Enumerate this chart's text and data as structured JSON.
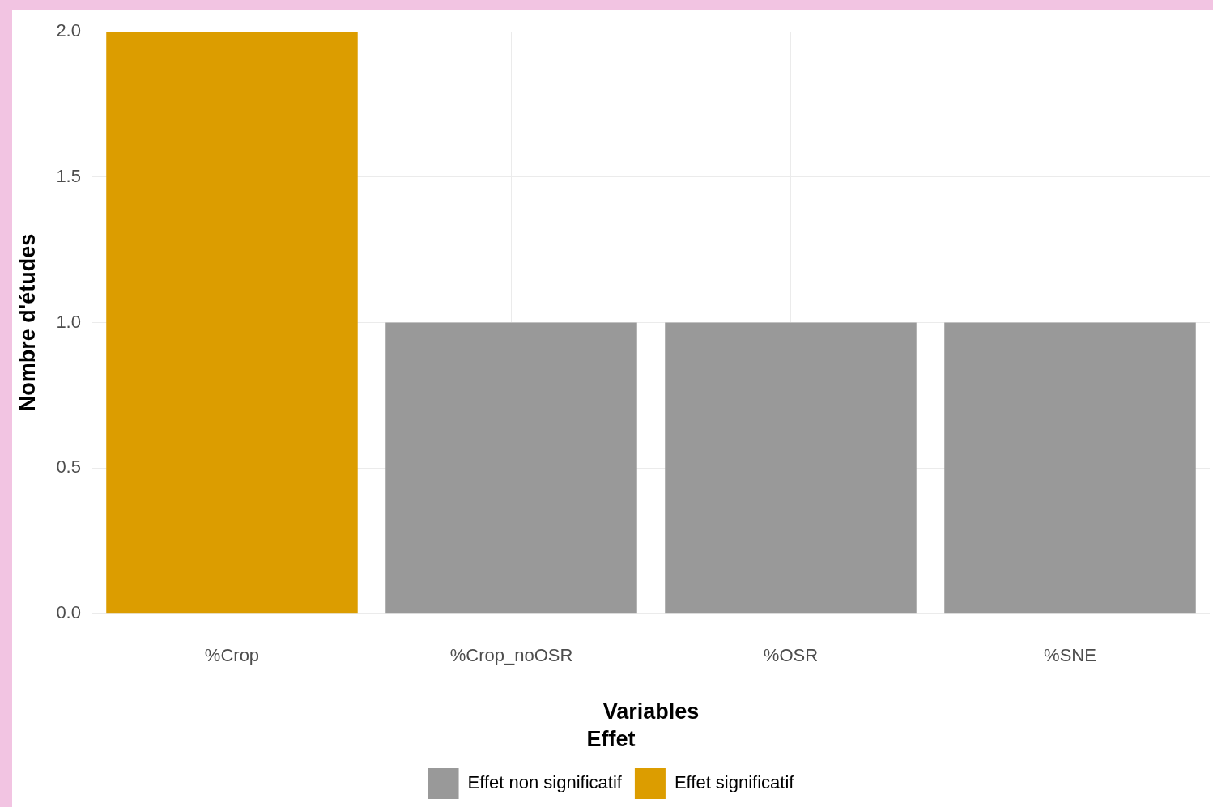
{
  "chart_data": {
    "type": "bar",
    "xlabel": "Variables",
    "ylabel": "Nombre d'études",
    "legend_title": "Effet",
    "categories": [
      "%Crop",
      "%Crop_noOSR",
      "%OSR",
      "%SNE"
    ],
    "series": [
      {
        "name": "Effet non significatif",
        "color": "#999999",
        "values": [
          null,
          1,
          1,
          1
        ]
      },
      {
        "name": "Effet significatif",
        "color": "#dc9d00",
        "values": [
          2,
          null,
          null,
          null
        ]
      }
    ],
    "stacked": true,
    "ylim": [
      0,
      2
    ],
    "yticks": [
      {
        "value": 0,
        "label": "0.0"
      },
      {
        "value": 0.5,
        "label": "0.5"
      },
      {
        "value": 1,
        "label": "1.0"
      },
      {
        "value": 1.5,
        "label": "1.5"
      },
      {
        "value": 2,
        "label": "2.0"
      }
    ],
    "grid": true,
    "legend": "bottom"
  }
}
